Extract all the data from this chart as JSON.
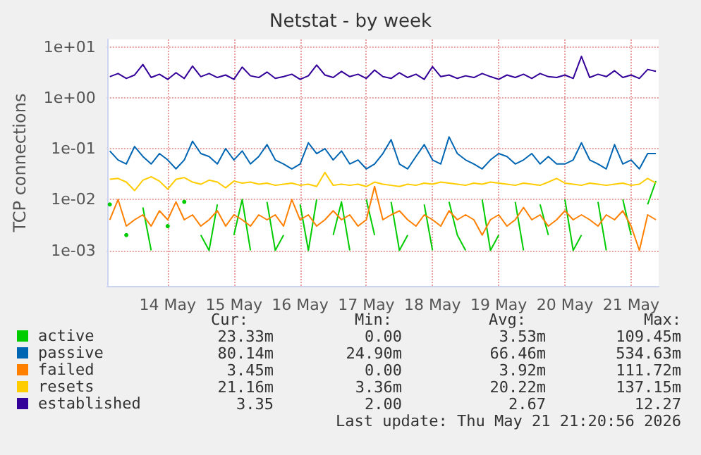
{
  "chart_data": {
    "type": "line",
    "title": "Netstat - by week",
    "ylabel": "TCP connections",
    "log": "y",
    "grid": true,
    "legend": "bottom left",
    "marker": "none",
    "line_style": "solid",
    "xlim": [
      "2026-05-13T14:00",
      "2026-05-21T22:00"
    ],
    "xticks": [
      {
        "value": "2026-05-14T12:00",
        "label": "14 May"
      },
      {
        "value": "2026-05-15T12:00",
        "label": "15 May"
      },
      {
        "value": "2026-05-16T12:00",
        "label": "16 May"
      },
      {
        "value": "2026-05-17T12:00",
        "label": "17 May"
      },
      {
        "value": "2026-05-18T12:00",
        "label": "18 May"
      },
      {
        "value": "2026-05-19T12:00",
        "label": "19 May"
      },
      {
        "value": "2026-05-20T12:00",
        "label": "20 May"
      },
      {
        "value": "2026-05-21T12:00",
        "label": "21 May"
      }
    ],
    "ylim": [
      0.0002,
      14
    ],
    "yticks": [
      {
        "value": 0.001,
        "label": "1e-03"
      },
      {
        "value": 0.01,
        "label": "1e-02"
      },
      {
        "value": 0.1,
        "label": "1e-01"
      },
      {
        "value": 1,
        "label": "1e+00"
      },
      {
        "value": 10,
        "label": "1e+01"
      }
    ],
    "x": [
      "2026-05-13T15:00",
      "2026-05-13T18:00",
      "2026-05-13T21:00",
      "2026-05-14T00:00",
      "2026-05-14T03:00",
      "2026-05-14T06:00",
      "2026-05-14T09:00",
      "2026-05-14T12:00",
      "2026-05-14T15:00",
      "2026-05-14T18:00",
      "2026-05-14T21:00",
      "2026-05-15T00:00",
      "2026-05-15T03:00",
      "2026-05-15T06:00",
      "2026-05-15T09:00",
      "2026-05-15T12:00",
      "2026-05-15T15:00",
      "2026-05-15T18:00",
      "2026-05-15T21:00",
      "2026-05-16T00:00",
      "2026-05-16T03:00",
      "2026-05-16T06:00",
      "2026-05-16T09:00",
      "2026-05-16T12:00",
      "2026-05-16T15:00",
      "2026-05-16T18:00",
      "2026-05-16T21:00",
      "2026-05-17T00:00",
      "2026-05-17T03:00",
      "2026-05-17T06:00",
      "2026-05-17T09:00",
      "2026-05-17T12:00",
      "2026-05-17T15:00",
      "2026-05-17T18:00",
      "2026-05-17T21:00",
      "2026-05-18T00:00",
      "2026-05-18T03:00",
      "2026-05-18T06:00",
      "2026-05-18T09:00",
      "2026-05-18T12:00",
      "2026-05-18T15:00",
      "2026-05-18T18:00",
      "2026-05-18T21:00",
      "2026-05-19T00:00",
      "2026-05-19T03:00",
      "2026-05-19T06:00",
      "2026-05-19T09:00",
      "2026-05-19T12:00",
      "2026-05-19T15:00",
      "2026-05-19T18:00",
      "2026-05-19T21:00",
      "2026-05-20T00:00",
      "2026-05-20T03:00",
      "2026-05-20T06:00",
      "2026-05-20T09:00",
      "2026-05-20T12:00",
      "2026-05-20T15:00",
      "2026-05-20T18:00",
      "2026-05-20T21:00",
      "2026-05-21T00:00",
      "2026-05-21T03:00",
      "2026-05-21T06:00",
      "2026-05-21T09:00",
      "2026-05-21T12:00",
      "2026-05-21T15:00",
      "2026-05-21T18:00",
      "2026-05-21T21:00"
    ],
    "series": [
      {
        "name": "active",
        "color": "#00cc00",
        "values": [
          0.008,
          null,
          0.002,
          null,
          0.007,
          0.001,
          null,
          0.003,
          null,
          0.009,
          null,
          0.002,
          0.001,
          0.008,
          null,
          0.002,
          0.01,
          0.001,
          null,
          0.009,
          0.001,
          0.002,
          null,
          0.008,
          0.001,
          0.01,
          null,
          0.002,
          0.009,
          0.001,
          null,
          0.01,
          0.002,
          null,
          0.009,
          0.001,
          0.002,
          null,
          0.008,
          0.001,
          null,
          0.009,
          0.002,
          0.001,
          null,
          0.01,
          0.001,
          0.002,
          null,
          0.009,
          0.001,
          null,
          0.008,
          0.002,
          null,
          0.01,
          0.001,
          0.002,
          null,
          0.009,
          0.001,
          null,
          0.01,
          0.002,
          null,
          0.008,
          0.023
        ]
      },
      {
        "name": "passive",
        "color": "#0066b3",
        "values": [
          0.09,
          0.06,
          0.05,
          0.11,
          0.07,
          0.05,
          0.08,
          0.06,
          0.04,
          0.06,
          0.14,
          0.08,
          0.07,
          0.05,
          0.1,
          0.06,
          0.09,
          0.05,
          0.07,
          0.12,
          0.06,
          0.05,
          0.04,
          0.05,
          0.13,
          0.08,
          0.1,
          0.06,
          0.09,
          0.05,
          0.06,
          0.04,
          0.05,
          0.08,
          0.15,
          0.05,
          0.04,
          0.07,
          0.12,
          0.06,
          0.05,
          0.17,
          0.08,
          0.06,
          0.05,
          0.04,
          0.06,
          0.08,
          0.07,
          0.05,
          0.06,
          0.08,
          0.05,
          0.07,
          0.05,
          0.05,
          0.06,
          0.13,
          0.06,
          0.05,
          0.04,
          0.12,
          0.05,
          0.06,
          0.04,
          0.08,
          0.08
        ]
      },
      {
        "name": "failed",
        "color": "#ff8000",
        "values": [
          0.004,
          0.01,
          0.003,
          0.004,
          0.005,
          0.003,
          0.006,
          0.004,
          0.009,
          0.004,
          0.005,
          0.003,
          0.004,
          0.006,
          0.003,
          0.005,
          0.004,
          0.003,
          0.005,
          0.004,
          0.005,
          0.003,
          0.01,
          0.004,
          0.005,
          0.003,
          0.004,
          0.006,
          0.004,
          0.005,
          0.003,
          0.004,
          0.018,
          0.004,
          0.005,
          0.006,
          0.004,
          0.003,
          0.005,
          0.004,
          0.003,
          0.006,
          0.004,
          0.005,
          0.004,
          0.002,
          0.004,
          0.005,
          0.003,
          0.004,
          0.007,
          0.004,
          0.005,
          0.003,
          0.004,
          0.006,
          0.004,
          0.005,
          0.004,
          0.003,
          0.005,
          0.004,
          0.006,
          0.003,
          0.001,
          0.005,
          0.004
        ]
      },
      {
        "name": "resets",
        "color": "#ffcc00",
        "values": [
          0.025,
          0.026,
          0.022,
          0.015,
          0.024,
          0.028,
          0.023,
          0.016,
          0.025,
          0.027,
          0.022,
          0.02,
          0.024,
          0.022,
          0.017,
          0.023,
          0.021,
          0.022,
          0.02,
          0.021,
          0.019,
          0.02,
          0.021,
          0.019,
          0.02,
          0.018,
          0.034,
          0.019,
          0.02,
          0.019,
          0.02,
          0.018,
          0.022,
          0.02,
          0.019,
          0.018,
          0.02,
          0.019,
          0.021,
          0.02,
          0.022,
          0.021,
          0.02,
          0.019,
          0.021,
          0.02,
          0.022,
          0.021,
          0.02,
          0.019,
          0.021,
          0.02,
          0.019,
          0.022,
          0.026,
          0.021,
          0.02,
          0.019,
          0.021,
          0.02,
          0.019,
          0.02,
          0.021,
          0.019,
          0.02,
          0.026,
          0.021
        ]
      },
      {
        "name": "established",
        "color": "#330099",
        "values": [
          2.6,
          3.0,
          2.4,
          2.8,
          4.5,
          2.5,
          2.9,
          2.3,
          3.1,
          2.4,
          4.2,
          2.6,
          3.0,
          2.5,
          2.8,
          2.3,
          4.0,
          2.7,
          2.5,
          3.2,
          2.4,
          2.6,
          2.9,
          2.3,
          2.7,
          4.4,
          2.8,
          2.5,
          3.3,
          2.6,
          2.9,
          2.4,
          3.5,
          2.6,
          2.4,
          3.1,
          2.5,
          2.9,
          2.3,
          4.1,
          2.6,
          2.8,
          2.4,
          2.7,
          2.5,
          3.0,
          2.6,
          2.3,
          2.8,
          2.5,
          2.9,
          2.4,
          3.0,
          2.6,
          2.5,
          2.8,
          2.4,
          6.5,
          2.5,
          2.9,
          2.6,
          3.4,
          2.5,
          2.8,
          2.4,
          3.6,
          3.3
        ]
      }
    ],
    "annotations": [
      "Cur:",
      "Min:",
      "Avg:",
      "Max:",
      "23.33m",
      "0.00",
      "3.53m",
      "109.45m",
      "80.14m",
      "24.90m",
      "66.46m",
      "534.63m",
      "3.45m",
      "0.00",
      "3.92m",
      "111.72m",
      "21.16m",
      "3.36m",
      "20.22m",
      "137.15m",
      "3.35",
      "2.00",
      "2.67",
      "12.27",
      "Last update: Thu May 21 21:20:56 2026"
    ]
  }
}
